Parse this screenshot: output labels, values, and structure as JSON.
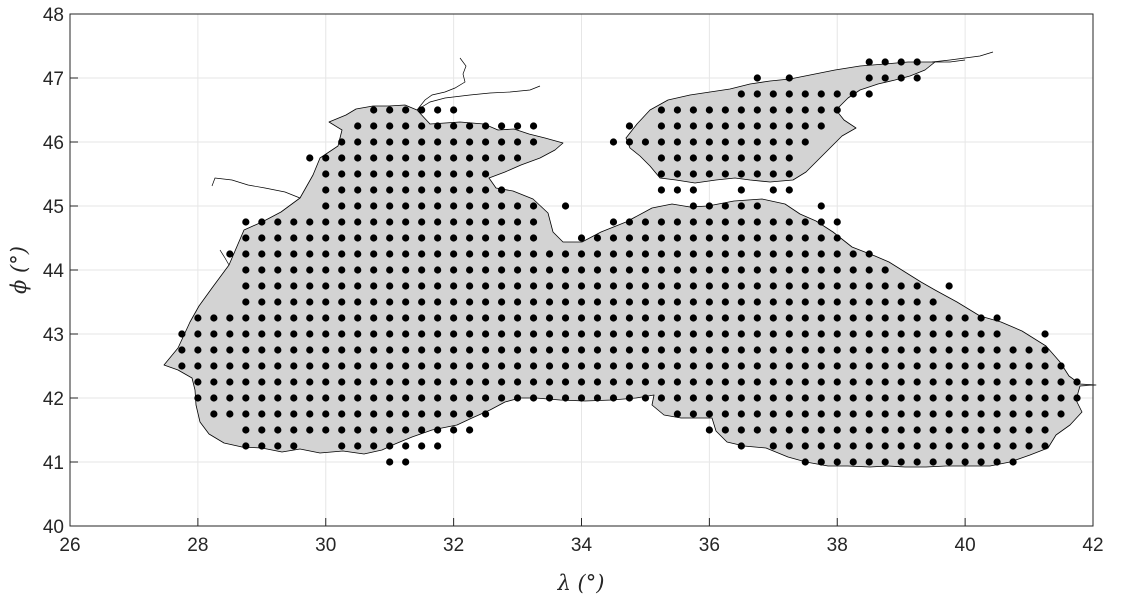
{
  "chart_data": {
    "type": "scatter",
    "title": "",
    "xlabel": "λ (°)",
    "ylabel": "ϕ (°)",
    "xlim": [
      26,
      42
    ],
    "ylim": [
      40,
      48
    ],
    "xticks": [
      "26",
      "28",
      "30",
      "32",
      "34",
      "36",
      "38",
      "40",
      "42"
    ],
    "yticks": [
      "40",
      "41",
      "42",
      "43",
      "44",
      "45",
      "46",
      "47",
      "48"
    ],
    "grid": true,
    "colors": {
      "land_fill": "#d3d3d3",
      "points": "#000000",
      "grid": "#e6e6e6",
      "axis": "#262626"
    },
    "grid_spacing_deg": 0.25,
    "rows": [
      {
        "lat": 47.25,
        "lon_ranges": [
          [
            38.5,
            39.25
          ]
        ]
      },
      {
        "lat": 47.0,
        "lon_ranges": [
          [
            36.75,
            36.75
          ],
          [
            37.25,
            37.25
          ],
          [
            38.5,
            39.25
          ]
        ]
      },
      {
        "lat": 46.75,
        "lon_ranges": [
          [
            36.5,
            38.5
          ]
        ]
      },
      {
        "lat": 46.5,
        "lon_ranges": [
          [
            30.75,
            32.0
          ],
          [
            35.25,
            35.25
          ],
          [
            35.5,
            38.0
          ]
        ]
      },
      {
        "lat": 46.25,
        "lon_ranges": [
          [
            30.5,
            33.25
          ],
          [
            34.75,
            34.75
          ],
          [
            35.25,
            37.75
          ]
        ]
      },
      {
        "lat": 46.0,
        "lon_ranges": [
          [
            30.25,
            33.25
          ],
          [
            34.5,
            34.75
          ],
          [
            35.0,
            37.5
          ]
        ]
      },
      {
        "lat": 45.75,
        "lon_ranges": [
          [
            29.75,
            33.0
          ],
          [
            35.25,
            37.25
          ]
        ]
      },
      {
        "lat": 45.5,
        "lon_ranges": [
          [
            30.0,
            32.5
          ],
          [
            35.25,
            37.25
          ]
        ]
      },
      {
        "lat": 45.25,
        "lon_ranges": [
          [
            30.0,
            32.75
          ],
          [
            35.25,
            35.75
          ],
          [
            36.5,
            36.5
          ],
          [
            37.0,
            37.25
          ]
        ]
      },
      {
        "lat": 45.0,
        "lon_ranges": [
          [
            30.0,
            33.25
          ],
          [
            33.75,
            33.75
          ],
          [
            35.75,
            36.75
          ],
          [
            37.75,
            37.75
          ]
        ]
      },
      {
        "lat": 44.75,
        "lon_ranges": [
          [
            28.75,
            33.25
          ],
          [
            34.5,
            38.0
          ]
        ]
      },
      {
        "lat": 44.5,
        "lon_ranges": [
          [
            28.75,
            33.25
          ],
          [
            34.0,
            38.0
          ]
        ]
      },
      {
        "lat": 44.25,
        "lon_ranges": [
          [
            28.5,
            38.5
          ]
        ]
      },
      {
        "lat": 44.0,
        "lon_ranges": [
          [
            28.75,
            38.75
          ]
        ]
      },
      {
        "lat": 43.75,
        "lon_ranges": [
          [
            28.75,
            39.25
          ],
          [
            39.75,
            39.75
          ]
        ]
      },
      {
        "lat": 43.5,
        "lon_ranges": [
          [
            28.75,
            39.5
          ]
        ]
      },
      {
        "lat": 43.25,
        "lon_ranges": [
          [
            28.0,
            40.0
          ],
          [
            40.25,
            40.25
          ],
          [
            40.5,
            40.5
          ]
        ]
      },
      {
        "lat": 43.0,
        "lon_ranges": [
          [
            27.75,
            40.5
          ],
          [
            41.25,
            41.25
          ]
        ]
      },
      {
        "lat": 42.75,
        "lon_ranges": [
          [
            27.75,
            41.25
          ]
        ]
      },
      {
        "lat": 42.5,
        "lon_ranges": [
          [
            27.75,
            41.5
          ]
        ]
      },
      {
        "lat": 42.25,
        "lon_ranges": [
          [
            28.0,
            41.75
          ]
        ]
      },
      {
        "lat": 42.0,
        "lon_ranges": [
          [
            28.0,
            41.75
          ]
        ]
      },
      {
        "lat": 41.75,
        "lon_ranges": [
          [
            28.25,
            32.5
          ],
          [
            35.5,
            41.5
          ]
        ]
      },
      {
        "lat": 41.5,
        "lon_ranges": [
          [
            28.75,
            32.25
          ],
          [
            36.0,
            41.25
          ]
        ]
      },
      {
        "lat": 41.25,
        "lon_ranges": [
          [
            28.75,
            29.5
          ],
          [
            30.25,
            31.5
          ],
          [
            31.75,
            31.75
          ],
          [
            36.5,
            36.5
          ],
          [
            37.0,
            39.75
          ],
          [
            40.0,
            41.25
          ]
        ]
      },
      {
        "lat": 41.0,
        "lon_ranges": [
          [
            31.0,
            31.25
          ],
          [
            37.5,
            40.75
          ]
        ]
      }
    ]
  }
}
